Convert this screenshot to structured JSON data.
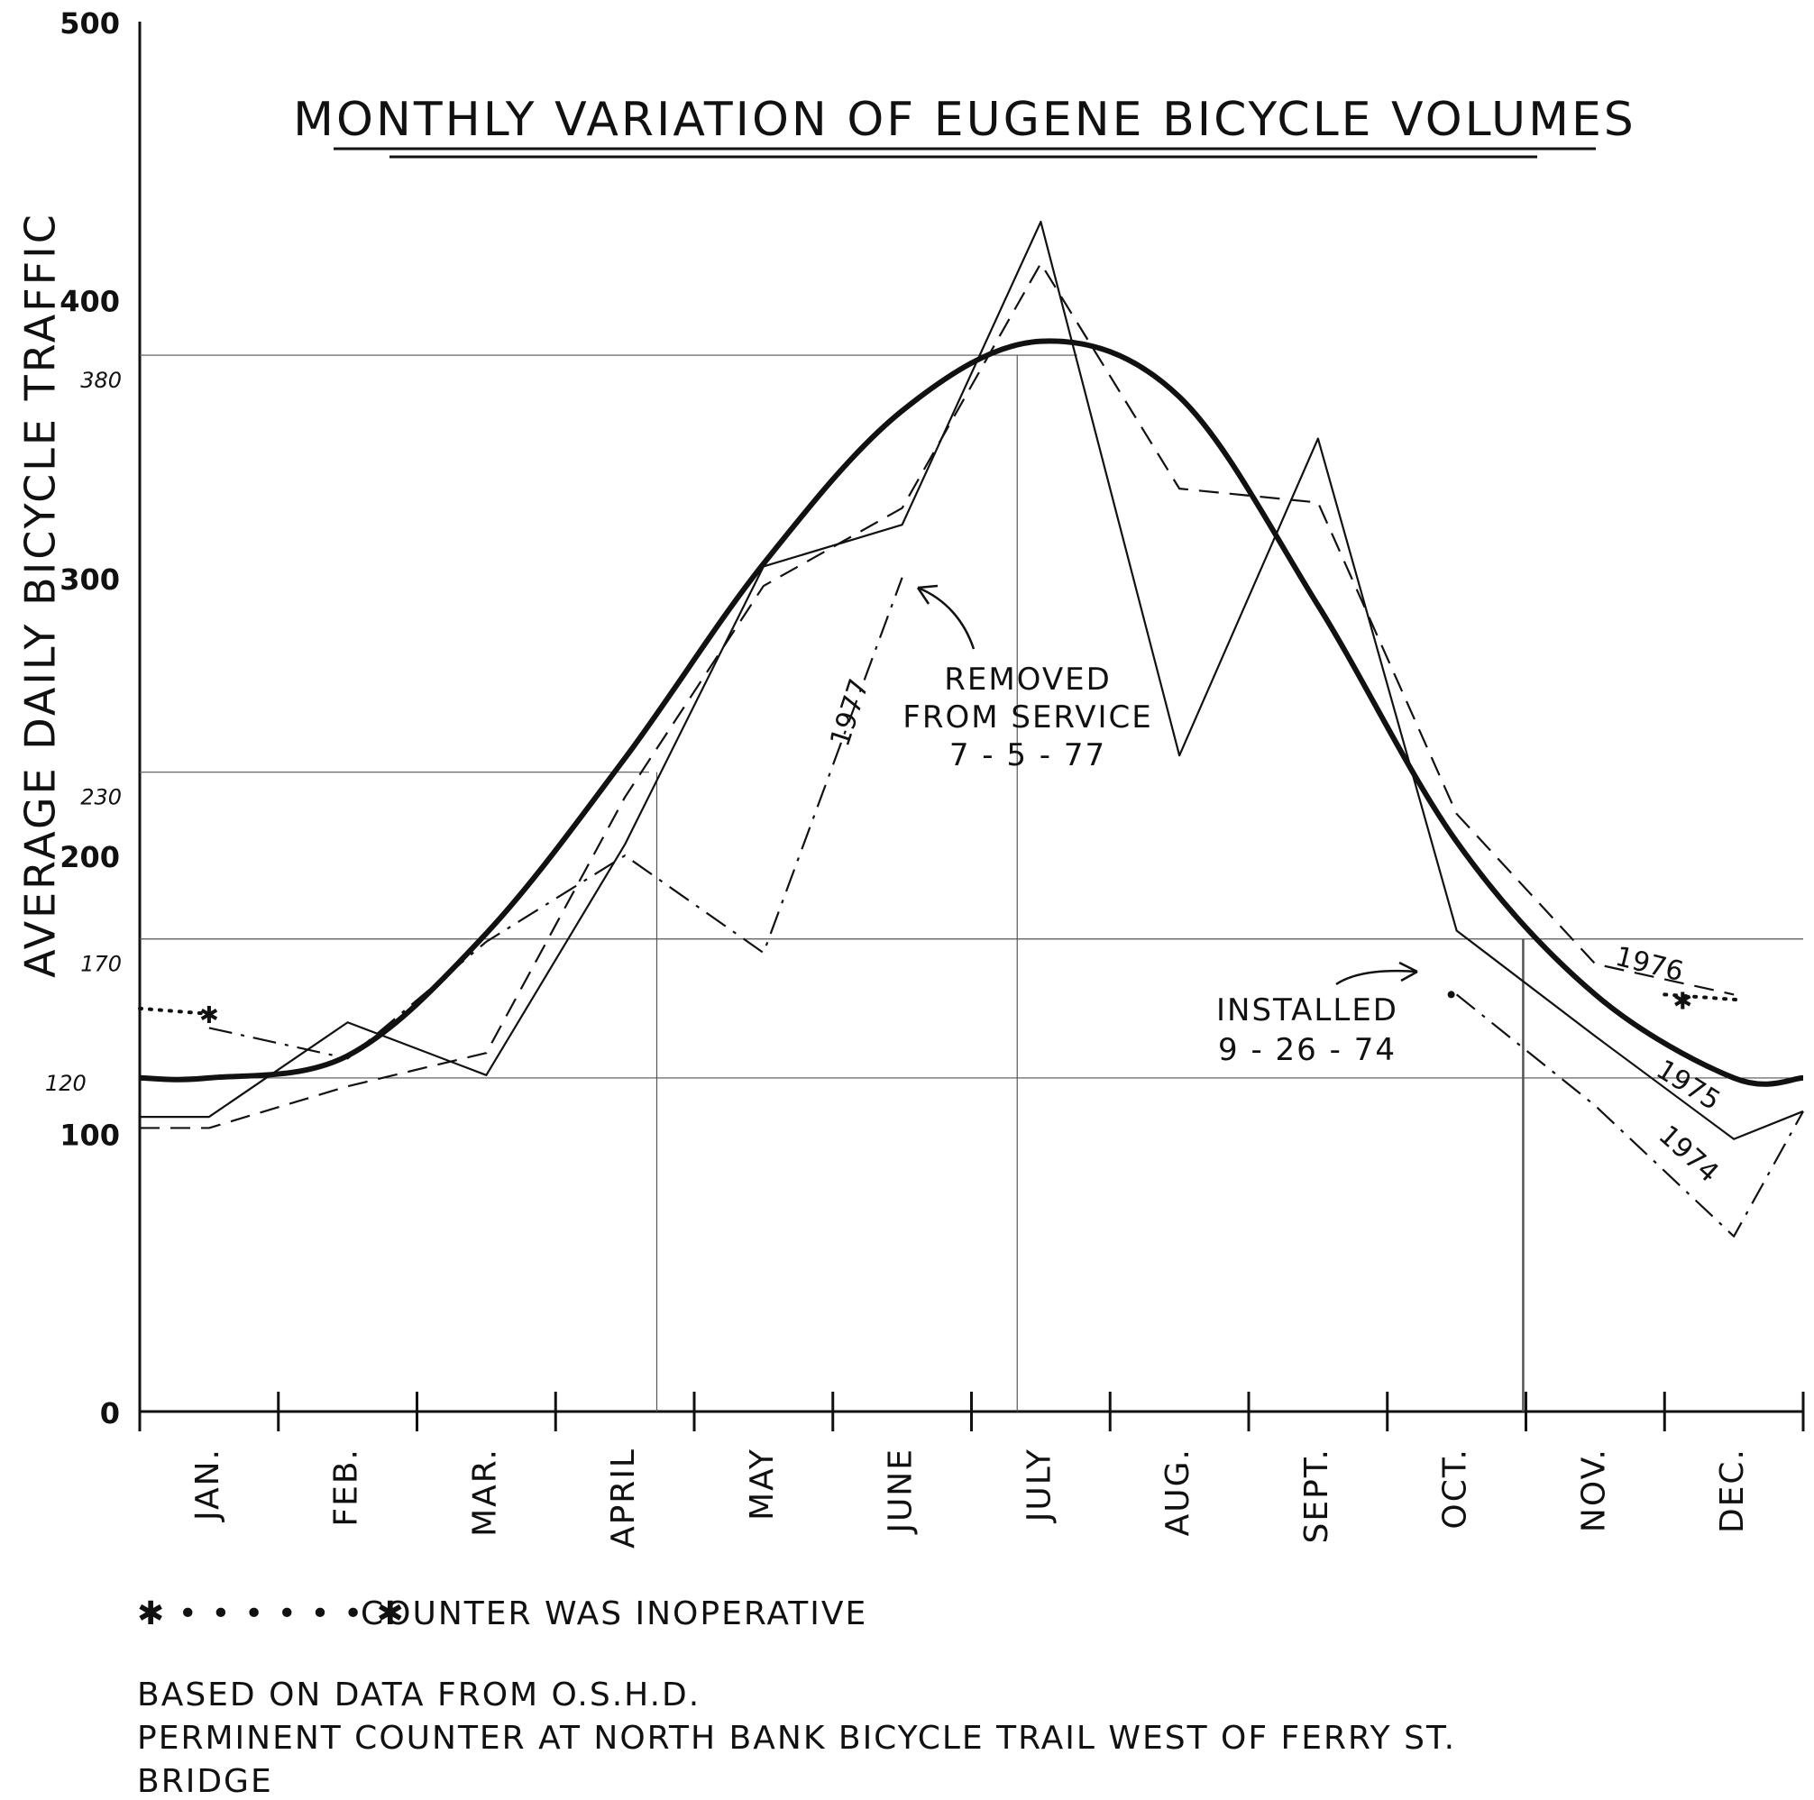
{
  "chart_data": {
    "type": "line",
    "title": "Monthly Variation of Eugene Bicycle Volumes",
    "ylabel": "Average Daily Bicycle Traffic",
    "xlabel": "",
    "ylim": [
      0,
      500
    ],
    "yticks": [
      0,
      100,
      200,
      300,
      400,
      500
    ],
    "grid": false,
    "categories": [
      "JAN.",
      "FEB.",
      "MAR.",
      "APRIL",
      "MAY",
      "JUNE",
      "JULY",
      "AUG.",
      "SEPT.",
      "OCT.",
      "NOV.",
      "DEC."
    ],
    "reference_lines": [
      {
        "label": "380",
        "value": 380
      },
      {
        "label": "230",
        "value": 230
      },
      {
        "label": "170",
        "value": 170
      },
      {
        "label": "120",
        "value": 120
      }
    ],
    "series": [
      {
        "name": "1974",
        "style": "dash-dot",
        "values": [
          null,
          null,
          null,
          null,
          null,
          null,
          null,
          null,
          null,
          150,
          110,
          63
        ]
      },
      {
        "name": "1975",
        "style": "solid",
        "values": [
          106,
          140,
          121,
          204,
          304,
          319,
          428,
          236,
          350,
          173,
          135,
          98
        ]
      },
      {
        "name": "1976",
        "style": "dashed",
        "values": [
          102,
          117,
          129,
          221,
          297,
          325,
          413,
          332,
          327,
          215,
          161,
          150
        ]
      },
      {
        "name": "1977",
        "style": "dash-dot",
        "values": [
          138,
          127,
          169,
          200,
          165,
          300,
          null,
          null,
          null,
          null,
          null,
          null
        ]
      },
      {
        "name": "",
        "style": "bold-smooth",
        "values": [
          120,
          128,
          172,
          235,
          305,
          360,
          385,
          365,
          290,
          205,
          150,
          120
        ]
      }
    ],
    "inoperative_segments": [
      {
        "from_month": 0.0,
        "to_month": 0.5,
        "value": 145
      },
      {
        "from_month": 11.0,
        "to_month": 11.55,
        "value": 150
      }
    ],
    "annotations": [
      {
        "id": "removed",
        "lines": [
          "REMOVED",
          "FROM SERVICE",
          "7 - 5 - 77"
        ]
      },
      {
        "id": "installed",
        "lines": [
          "INSTALLED",
          "9 - 26 - 74"
        ]
      }
    ],
    "series_labels": [
      "1977",
      "1976",
      "1975",
      "1974"
    ]
  },
  "legend_text": "COUNTER WAS INOPERATIVE",
  "source_lines": [
    "BASED ON DATA FROM O.S.H.D.",
    "PERMINENT COUNTER AT NORTH BANK BICYCLE TRAIL WEST OF FERRY ST.",
    "BRIDGE"
  ]
}
